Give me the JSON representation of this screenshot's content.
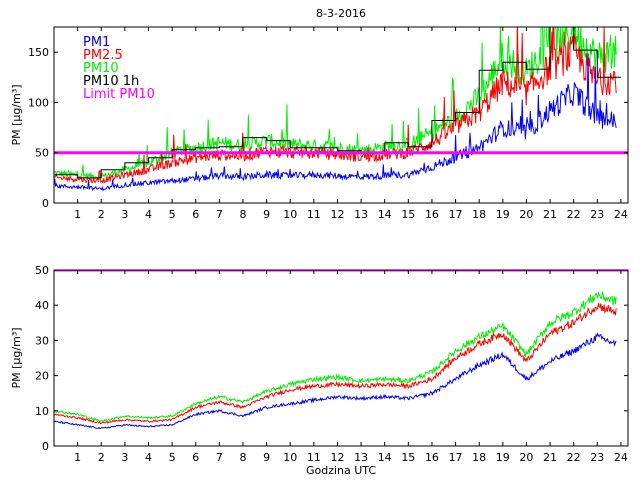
{
  "chart_data": [
    {
      "type": "line",
      "title": "8-3-2016",
      "xlabel": "",
      "ylabel": "PM [µg/m³]",
      "xlim": [
        0,
        24.3
      ],
      "ylim": [
        0,
        175
      ],
      "xticks": [
        "1",
        "2",
        "3",
        "4",
        "5",
        "6",
        "7",
        "8",
        "9",
        "10",
        "11",
        "12",
        "13",
        "14",
        "15",
        "16",
        "17",
        "18",
        "19",
        "20",
        "21",
        "22",
        "23",
        "24"
      ],
      "yticks": [
        "0",
        "50",
        "100",
        "150"
      ],
      "legend_position": "top-left",
      "legend": [
        "PM1",
        "PM2.5",
        "PM10",
        "PM10 1h",
        "Limit PM10"
      ],
      "limit": 50,
      "series": [
        {
          "name": "PM1",
          "color": "#0000ff",
          "x": [
            0,
            1,
            2,
            3,
            4,
            5,
            6,
            7,
            8,
            9,
            10,
            11,
            12,
            13,
            14,
            15,
            16,
            17,
            18,
            19,
            20,
            21,
            22,
            23,
            24
          ],
          "values": [
            17,
            16,
            14,
            18,
            20,
            22,
            24,
            27,
            26,
            28,
            27,
            28,
            27,
            26,
            27,
            28,
            36,
            45,
            55,
            75,
            70,
            92,
            110,
            85,
            80
          ]
        },
        {
          "name": "PM2.5",
          "color": "#ff0000",
          "x": [
            0,
            1,
            2,
            3,
            4,
            5,
            6,
            7,
            8,
            9,
            10,
            11,
            12,
            13,
            14,
            15,
            16,
            17,
            18,
            19,
            20,
            21,
            22,
            23,
            24
          ],
          "values": [
            25,
            24,
            22,
            28,
            33,
            40,
            45,
            48,
            47,
            52,
            50,
            50,
            48,
            46,
            48,
            50,
            60,
            75,
            90,
            120,
            110,
            135,
            150,
            120,
            125
          ]
        },
        {
          "name": "PM10",
          "color": "#00ee00",
          "x": [
            0,
            1,
            2,
            3,
            4,
            5,
            6,
            7,
            8,
            9,
            10,
            11,
            12,
            13,
            14,
            15,
            16,
            17,
            18,
            19,
            20,
            21,
            22,
            23,
            24
          ],
          "values": [
            30,
            28,
            26,
            33,
            40,
            50,
            55,
            60,
            57,
            62,
            58,
            57,
            55,
            52,
            56,
            58,
            70,
            85,
            105,
            145,
            130,
            160,
            170,
            145,
            150
          ]
        },
        {
          "name": "PM10 1h",
          "color": "#000000",
          "x": [
            0,
            1,
            2,
            3,
            4,
            5,
            6,
            7,
            8,
            9,
            10,
            11,
            12,
            13,
            14,
            15,
            16,
            17,
            18,
            19,
            20,
            21,
            22,
            23
          ],
          "values": [
            28,
            25,
            33,
            40,
            45,
            53,
            55,
            56,
            65,
            62,
            55,
            55,
            52,
            50,
            60,
            56,
            82,
            90,
            132,
            140,
            133,
            175,
            152,
            125
          ]
        }
      ]
    },
    {
      "type": "line",
      "title": "",
      "xlabel": "Godzina UTC",
      "ylabel": "PM [µg/m³]",
      "xlim": [
        0,
        24.3
      ],
      "ylim": [
        0,
        50
      ],
      "xticks": [
        "1",
        "2",
        "3",
        "4",
        "5",
        "6",
        "7",
        "8",
        "9",
        "10",
        "11",
        "12",
        "13",
        "14",
        "15",
        "16",
        "17",
        "18",
        "19",
        "20",
        "21",
        "22",
        "23",
        "24"
      ],
      "yticks": [
        "0",
        "10",
        "20",
        "30",
        "40",
        "50"
      ],
      "limit": 50,
      "series": [
        {
          "name": "PM1",
          "color": "#0000ff",
          "x": [
            0,
            1,
            2,
            3,
            4,
            5,
            6,
            7,
            8,
            9,
            10,
            11,
            12,
            13,
            14,
            15,
            16,
            17,
            18,
            19,
            20,
            21,
            22,
            23,
            23.8
          ],
          "values": [
            7,
            6,
            5,
            6,
            5.5,
            6,
            9,
            10,
            8.5,
            11,
            12,
            13,
            14,
            13.5,
            14,
            13.5,
            15,
            19,
            23,
            26,
            19,
            24,
            27,
            31,
            29
          ]
        },
        {
          "name": "PM2.5",
          "color": "#ff0000",
          "x": [
            0,
            1,
            2,
            3,
            4,
            5,
            6,
            7,
            8,
            9,
            10,
            11,
            12,
            13,
            14,
            15,
            16,
            17,
            18,
            19,
            20,
            21,
            22,
            23,
            23.8
          ],
          "values": [
            9,
            8,
            6.5,
            7.5,
            7,
            7.5,
            11,
            12.5,
            11,
            14,
            16,
            17,
            17.5,
            17,
            17.5,
            17,
            19,
            25,
            29,
            32,
            24,
            32,
            35,
            40,
            38
          ]
        },
        {
          "name": "PM10",
          "color": "#00ee00",
          "x": [
            0,
            1,
            2,
            3,
            4,
            5,
            6,
            7,
            8,
            9,
            10,
            11,
            12,
            13,
            14,
            15,
            16,
            17,
            18,
            19,
            20,
            21,
            22,
            23,
            23.8
          ],
          "values": [
            10,
            9,
            7,
            8.5,
            8,
            8.5,
            12,
            14,
            12.5,
            15.5,
            17.5,
            19,
            19.5,
            18.5,
            19,
            18.5,
            21,
            27,
            31,
            34,
            26,
            35,
            38,
            43,
            41
          ]
        }
      ]
    }
  ]
}
